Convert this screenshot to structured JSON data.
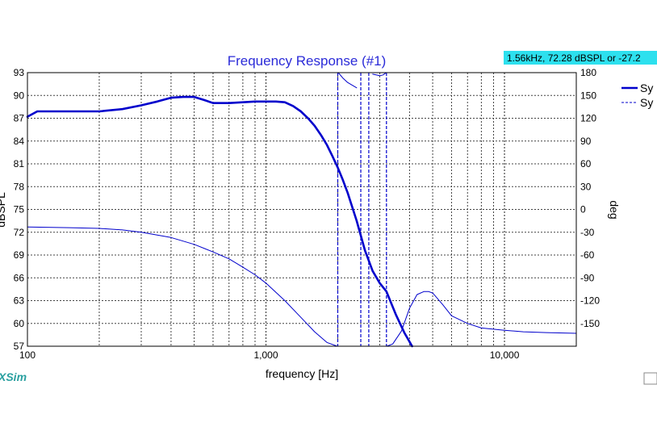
{
  "readout": "1.56kHz, 72.28 dBSPL or -27.2",
  "brand": "XSim",
  "chart_data": {
    "type": "line",
    "title": "Frequency Response (#1)",
    "xlabel": "frequency [Hz]",
    "ylabel_left": "dBSPL",
    "ylabel_right": "deg",
    "xscale": "log",
    "xlim": [
      100,
      20000
    ],
    "ylim_left": [
      57,
      93
    ],
    "ylim_right": [
      -180,
      180
    ],
    "x_ticks": [
      100,
      1000,
      10000
    ],
    "x_tick_labels": [
      "100",
      "1,000",
      "10,000"
    ],
    "y_left_ticks": [
      57,
      60,
      63,
      66,
      69,
      72,
      75,
      78,
      81,
      84,
      87,
      90,
      93
    ],
    "y_right_ticks": [
      -150,
      -120,
      -90,
      -60,
      -30,
      0,
      30,
      60,
      90,
      120,
      150,
      180
    ],
    "grid": true,
    "legend_position": "top-right",
    "colors": {
      "series": "#0000cc",
      "grid": "#444444",
      "title": "#2b2bd8",
      "readout_bg": "#2de0ee"
    },
    "series": [
      {
        "name": "Sy",
        "axis": "left",
        "style": "solid",
        "x": [
          100,
          110,
          130,
          160,
          200,
          250,
          300,
          350,
          400,
          450,
          500,
          550,
          600,
          700,
          800,
          900,
          1000,
          1100,
          1200,
          1300,
          1400,
          1500,
          1600,
          1700,
          1800,
          1900,
          2000,
          2100,
          2200,
          2400,
          2600,
          2800,
          3000,
          3200,
          3500,
          3800,
          4100
        ],
        "values": [
          87.2,
          87.9,
          87.9,
          87.9,
          87.9,
          88.2,
          88.7,
          89.2,
          89.7,
          89.8,
          89.8,
          89.4,
          89.0,
          89.0,
          89.1,
          89.2,
          89.2,
          89.2,
          89.1,
          88.6,
          87.9,
          87.0,
          86.0,
          84.8,
          83.5,
          82.0,
          80.5,
          78.9,
          77.2,
          73.5,
          69.6,
          66.9,
          65.3,
          64.2,
          61.2,
          58.8,
          57.0
        ]
      },
      {
        "name": "Sy",
        "axis": "right",
        "style": "dashed",
        "x": [
          100,
          150,
          200,
          250,
          300,
          400,
          500,
          600,
          700,
          800,
          900,
          1000,
          1200,
          1400,
          1600,
          1800,
          1990,
          2010,
          2100,
          2200,
          2400,
          2600,
          2800,
          3000,
          3100,
          3190,
          3210,
          3400,
          3700,
          4000,
          4300,
          4600,
          4800,
          5000,
          5500,
          6000,
          7000,
          8000,
          10000,
          12000,
          15000,
          20000
        ],
        "values": [
          -23,
          -24,
          -25,
          -27,
          -30,
          -37,
          -46,
          -56,
          -65,
          -76,
          -86,
          -97,
          -120,
          -142,
          -161,
          -175,
          -180,
          180,
          173,
          167,
          160,
          -180,
          178,
          176,
          177,
          180,
          -180,
          -177,
          -160,
          -130,
          -112,
          -108,
          -108,
          -110,
          -125,
          -140,
          -150,
          -156,
          -159,
          -161,
          -162,
          -163
        ]
      }
    ]
  }
}
